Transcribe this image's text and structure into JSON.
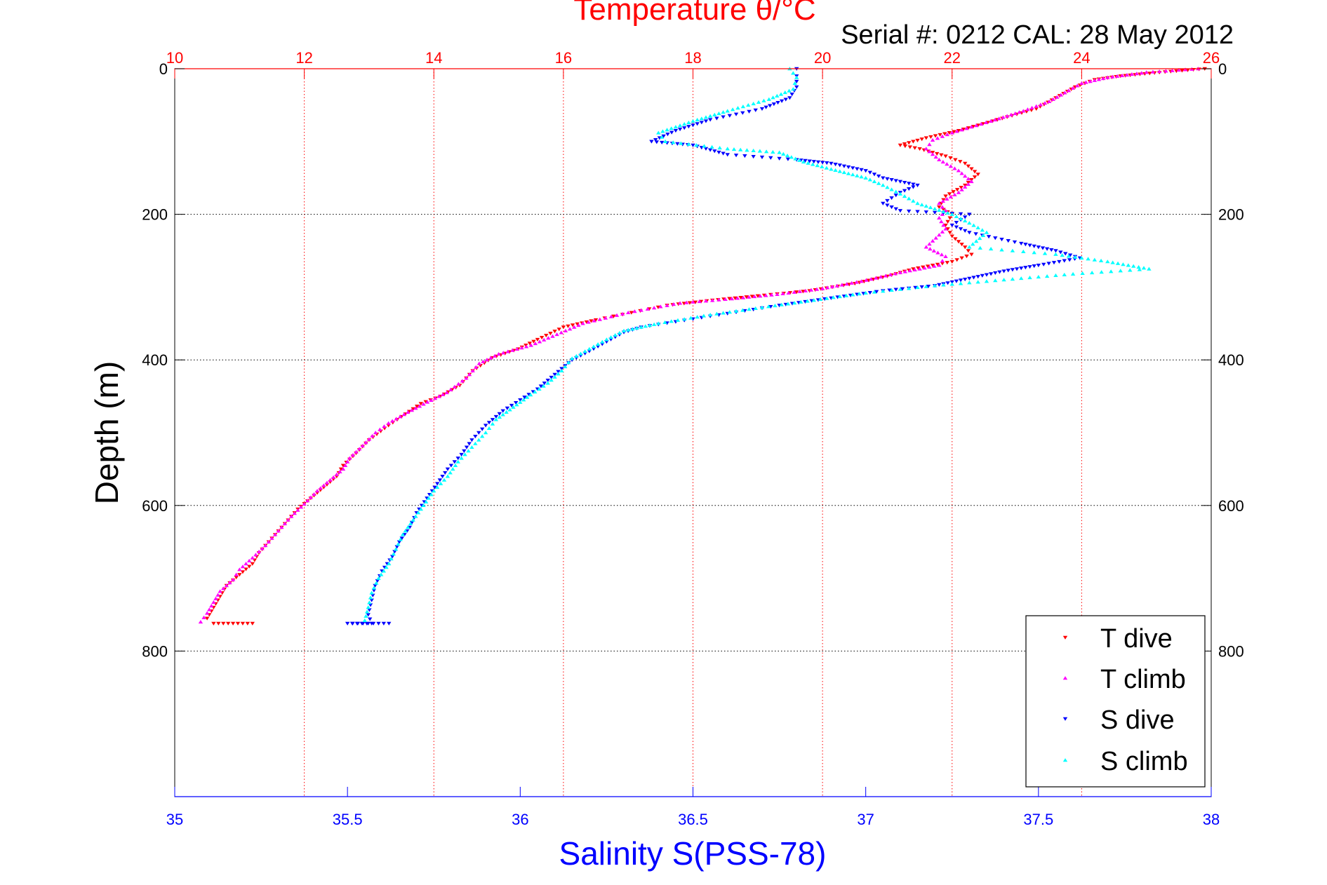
{
  "chart_data": {
    "type": "scatter",
    "title": "Temperature θ/°C",
    "annotation": "Serial #: 0212  CAL: 28 May 2012",
    "xlabel": "Salinity S(PSS-78)",
    "ylabel": "Depth (m)",
    "top_axis": {
      "label": "Temperature θ/°C",
      "range": [
        10,
        26
      ],
      "ticks": [
        "10",
        "12",
        "14",
        "16",
        "18",
        "20",
        "22",
        "24",
        "26"
      ],
      "color": "#ff0000",
      "grid": true
    },
    "bottom_axis": {
      "label": "Salinity S(PSS-78)",
      "range": [
        35,
        38
      ],
      "ticks": [
        "35",
        "35.5",
        "36",
        "36.5",
        "37",
        "37.5",
        "38"
      ],
      "color": "#0000ff"
    },
    "y_axis": {
      "range": [
        0,
        1000
      ],
      "reversed": true,
      "ticks": [
        "0",
        "200",
        "400",
        "600",
        "800"
      ],
      "grid": true
    },
    "legend": {
      "placement": "bottom-right",
      "entries": [
        "T dive",
        "T climb",
        "S dive",
        "S climb"
      ]
    },
    "series": [
      {
        "name": "T dive",
        "axis": "temperature",
        "color": "#ff0000",
        "marker": "triangle-down",
        "points": [
          [
            25.9,
            0
          ],
          [
            25.2,
            5
          ],
          [
            24.6,
            10
          ],
          [
            24.2,
            15
          ],
          [
            23.9,
            25
          ],
          [
            23.6,
            40
          ],
          [
            23.3,
            55
          ],
          [
            22.7,
            70
          ],
          [
            22.1,
            85
          ],
          [
            21.6,
            95
          ],
          [
            21.2,
            105
          ],
          [
            21.5,
            110
          ],
          [
            21.9,
            120
          ],
          [
            22.2,
            130
          ],
          [
            22.4,
            145
          ],
          [
            22.2,
            160
          ],
          [
            21.9,
            175
          ],
          [
            21.8,
            190
          ],
          [
            22.0,
            200
          ],
          [
            21.9,
            215
          ],
          [
            22.0,
            230
          ],
          [
            22.2,
            245
          ],
          [
            22.3,
            255
          ],
          [
            22.0,
            265
          ],
          [
            21.4,
            275
          ],
          [
            21.0,
            285
          ],
          [
            20.5,
            295
          ],
          [
            19.8,
            305
          ],
          [
            19.0,
            312
          ],
          [
            18.3,
            318
          ],
          [
            17.6,
            325
          ],
          [
            16.5,
            345
          ],
          [
            16.0,
            355
          ],
          [
            15.6,
            372
          ],
          [
            15.3,
            385
          ],
          [
            14.9,
            397
          ],
          [
            14.6,
            415
          ],
          [
            14.4,
            435
          ],
          [
            14.1,
            450
          ],
          [
            13.8,
            460
          ],
          [
            13.5,
            478
          ],
          [
            13.3,
            490
          ],
          [
            13.0,
            510
          ],
          [
            12.8,
            528
          ],
          [
            12.6,
            545
          ],
          [
            12.5,
            560
          ],
          [
            12.3,
            575
          ],
          [
            12.1,
            590
          ],
          [
            11.9,
            605
          ],
          [
            11.7,
            625
          ],
          [
            11.5,
            645
          ],
          [
            11.3,
            665
          ],
          [
            11.2,
            680
          ],
          [
            11.0,
            695
          ],
          [
            10.8,
            710
          ],
          [
            10.7,
            725
          ],
          [
            10.6,
            740
          ],
          [
            10.5,
            755
          ],
          [
            10.6,
            762
          ],
          [
            10.9,
            762
          ],
          [
            11.2,
            762
          ]
        ]
      },
      {
        "name": "T climb",
        "axis": "temperature",
        "color": "#ff00ff",
        "marker": "triangle-up",
        "points": [
          [
            25.8,
            0
          ],
          [
            25.0,
            5
          ],
          [
            24.4,
            12
          ],
          [
            24.0,
            20
          ],
          [
            23.8,
            30
          ],
          [
            23.5,
            45
          ],
          [
            23.1,
            58
          ],
          [
            22.6,
            72
          ],
          [
            22.0,
            88
          ],
          [
            21.7,
            98
          ],
          [
            21.6,
            110
          ],
          [
            21.8,
            125
          ],
          [
            22.1,
            140
          ],
          [
            22.3,
            155
          ],
          [
            22.1,
            170
          ],
          [
            21.8,
            185
          ],
          [
            21.9,
            195
          ],
          [
            21.8,
            205
          ],
          [
            21.9,
            220
          ],
          [
            21.6,
            245
          ],
          [
            21.9,
            258
          ],
          [
            21.8,
            270
          ],
          [
            21.2,
            280
          ],
          [
            20.6,
            292
          ],
          [
            20.0,
            302
          ],
          [
            19.3,
            310
          ],
          [
            18.6,
            316
          ],
          [
            17.8,
            322
          ],
          [
            17.0,
            335
          ],
          [
            16.3,
            350
          ],
          [
            15.9,
            365
          ],
          [
            15.5,
            380
          ],
          [
            15.0,
            392
          ],
          [
            14.7,
            405
          ],
          [
            14.5,
            425
          ],
          [
            14.2,
            445
          ],
          [
            13.9,
            458
          ],
          [
            13.6,
            472
          ],
          [
            13.3,
            487
          ],
          [
            13.1,
            500
          ],
          [
            12.9,
            518
          ],
          [
            12.7,
            535
          ],
          [
            12.6,
            550
          ],
          [
            12.4,
            565
          ],
          [
            12.2,
            580
          ],
          [
            12.0,
            598
          ],
          [
            11.8,
            615
          ],
          [
            11.6,
            635
          ],
          [
            11.4,
            655
          ],
          [
            11.2,
            672
          ],
          [
            11.0,
            688
          ],
          [
            10.9,
            702
          ],
          [
            10.7,
            718
          ],
          [
            10.6,
            733
          ],
          [
            10.5,
            748
          ],
          [
            10.4,
            760
          ]
        ]
      },
      {
        "name": "S dive",
        "axis": "salinity",
        "color": "#0000ff",
        "marker": "triangle-down",
        "points": [
          [
            36.8,
            0
          ],
          [
            36.8,
            10
          ],
          [
            36.8,
            25
          ],
          [
            36.78,
            40
          ],
          [
            36.7,
            55
          ],
          [
            36.55,
            70
          ],
          [
            36.45,
            85
          ],
          [
            36.38,
            100
          ],
          [
            36.5,
            105
          ],
          [
            36.6,
            118
          ],
          [
            36.8,
            125
          ],
          [
            36.9,
            130
          ],
          [
            37.0,
            140
          ],
          [
            37.05,
            150
          ],
          [
            37.15,
            160
          ],
          [
            37.1,
            170
          ],
          [
            37.05,
            185
          ],
          [
            37.1,
            195
          ],
          [
            37.3,
            200
          ],
          [
            37.25,
            215
          ],
          [
            37.3,
            225
          ],
          [
            37.45,
            240
          ],
          [
            37.55,
            250
          ],
          [
            37.62,
            260
          ],
          [
            37.5,
            270
          ],
          [
            37.4,
            278
          ],
          [
            37.3,
            288
          ],
          [
            37.2,
            298
          ],
          [
            37.05,
            305
          ],
          [
            36.9,
            315
          ],
          [
            36.75,
            325
          ],
          [
            36.55,
            340
          ],
          [
            36.35,
            355
          ],
          [
            36.3,
            362
          ],
          [
            36.25,
            375
          ],
          [
            36.2,
            388
          ],
          [
            36.15,
            400
          ],
          [
            36.1,
            420
          ],
          [
            36.05,
            440
          ],
          [
            36.0,
            455
          ],
          [
            35.95,
            470
          ],
          [
            35.9,
            490
          ],
          [
            35.86,
            510
          ],
          [
            35.83,
            530
          ],
          [
            35.79,
            550
          ],
          [
            35.76,
            570
          ],
          [
            35.73,
            590
          ],
          [
            35.7,
            610
          ],
          [
            35.68,
            630
          ],
          [
            35.65,
            650
          ],
          [
            35.63,
            670
          ],
          [
            35.6,
            690
          ],
          [
            35.58,
            710
          ],
          [
            35.57,
            730
          ],
          [
            35.56,
            750
          ],
          [
            35.57,
            762
          ],
          [
            35.5,
            762
          ],
          [
            35.62,
            762
          ]
        ]
      },
      {
        "name": "S climb",
        "axis": "salinity",
        "color": "#00ffff",
        "marker": "triangle-up",
        "points": [
          [
            36.78,
            0
          ],
          [
            36.8,
            12
          ],
          [
            36.79,
            28
          ],
          [
            36.72,
            42
          ],
          [
            36.6,
            58
          ],
          [
            36.5,
            72
          ],
          [
            36.4,
            88
          ],
          [
            36.42,
            100
          ],
          [
            36.6,
            110
          ],
          [
            36.75,
            115
          ],
          [
            36.82,
            128
          ],
          [
            36.9,
            138
          ],
          [
            37.0,
            150
          ],
          [
            37.05,
            160
          ],
          [
            37.1,
            172
          ],
          [
            37.15,
            185
          ],
          [
            37.25,
            200
          ],
          [
            37.3,
            212
          ],
          [
            37.35,
            225
          ],
          [
            37.3,
            245
          ],
          [
            37.55,
            255
          ],
          [
            37.7,
            265
          ],
          [
            37.82,
            275
          ],
          [
            37.6,
            282
          ],
          [
            37.4,
            290
          ],
          [
            37.2,
            298
          ],
          [
            37.0,
            308
          ],
          [
            36.85,
            318
          ],
          [
            36.7,
            328
          ],
          [
            36.55,
            338
          ],
          [
            36.4,
            350
          ],
          [
            36.3,
            360
          ],
          [
            36.25,
            372
          ],
          [
            36.2,
            385
          ],
          [
            36.15,
            398
          ],
          [
            36.12,
            415
          ],
          [
            36.08,
            432
          ],
          [
            36.03,
            448
          ],
          [
            35.98,
            465
          ],
          [
            35.93,
            482
          ],
          [
            35.9,
            500
          ],
          [
            35.86,
            520
          ],
          [
            35.82,
            540
          ],
          [
            35.79,
            560
          ],
          [
            35.75,
            580
          ],
          [
            35.72,
            600
          ],
          [
            35.69,
            620
          ],
          [
            35.66,
            640
          ],
          [
            35.64,
            660
          ],
          [
            35.62,
            680
          ],
          [
            35.59,
            700
          ],
          [
            35.57,
            720
          ],
          [
            35.56,
            740
          ],
          [
            35.55,
            758
          ]
        ]
      }
    ]
  }
}
